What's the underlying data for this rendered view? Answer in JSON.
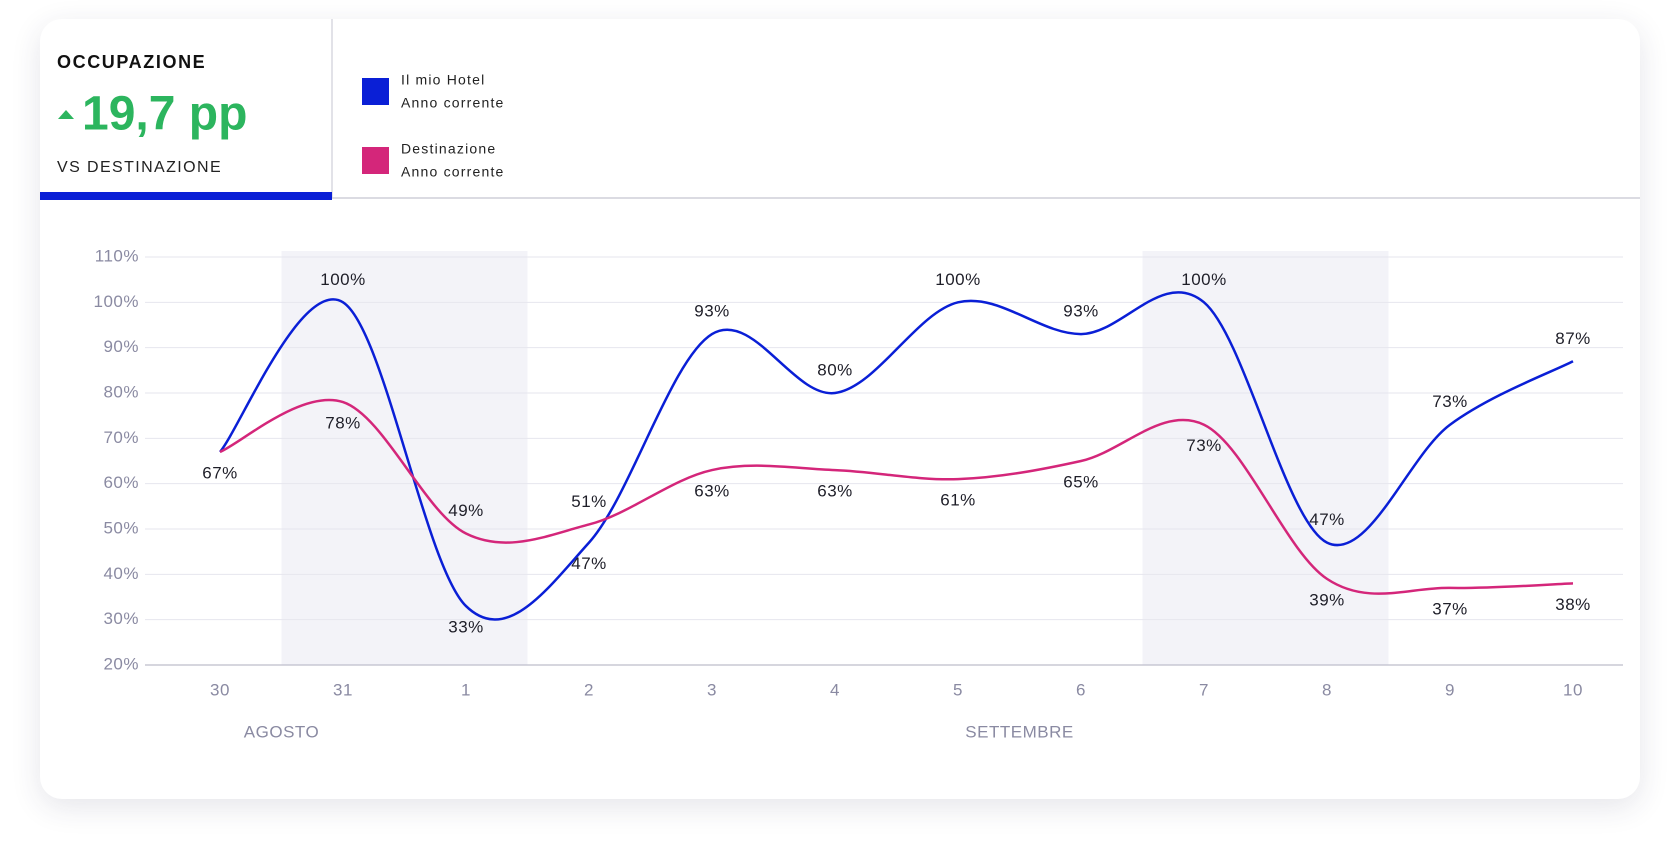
{
  "header": {
    "title": "OCCUPAZIONE",
    "value": "19,7 pp",
    "subtitle": "VS DESTINAZIONE"
  },
  "chart_data": {
    "type": "line",
    "categories": [
      "30",
      "31",
      "1",
      "2",
      "3",
      "4",
      "5",
      "6",
      "7",
      "8",
      "9",
      "10"
    ],
    "x_groups": [
      "AGOSTO",
      "SETTEMBRE"
    ],
    "series": [
      {
        "name": "Il mio Hotel",
        "period": "Anno corrente",
        "color": "#0a1fd6",
        "values": [
          67,
          100,
          33,
          47,
          93,
          80,
          100,
          93,
          100,
          47,
          73,
          87
        ],
        "value_labels": [
          "67%",
          "100%",
          "33%",
          "47%",
          "93%",
          "80%",
          "100%",
          "93%",
          "100%",
          "47%",
          "73%",
          "87%"
        ]
      },
      {
        "name": "Destinazione",
        "period": "Anno corrente",
        "color": "#d4267a",
        "values": [
          67,
          78,
          49,
          51,
          63,
          63,
          61,
          65,
          73,
          39,
          37,
          38
        ],
        "value_labels": [
          null,
          "78%",
          "49%",
          "51%",
          "63%",
          "63%",
          "61%",
          "65%",
          "73%",
          "39%",
          "37%",
          "38%"
        ]
      }
    ],
    "ylim": [
      20,
      110
    ],
    "yticks": [
      {
        "value": 20,
        "label": "20%"
      },
      {
        "value": 30,
        "label": "30%"
      },
      {
        "value": 40,
        "label": "40%"
      },
      {
        "value": 50,
        "label": "50%"
      },
      {
        "value": 60,
        "label": "60%"
      },
      {
        "value": 70,
        "label": "70%"
      },
      {
        "value": 80,
        "label": "80%"
      },
      {
        "value": 90,
        "label": "90%"
      },
      {
        "value": 100,
        "label": "100%"
      },
      {
        "value": 110,
        "label": "110%"
      }
    ],
    "grid": true
  }
}
